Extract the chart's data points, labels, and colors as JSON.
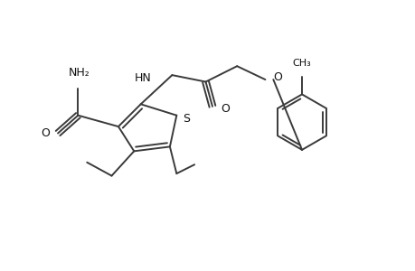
{
  "bg_color": "#ffffff",
  "line_color": "#3a3a3a",
  "line_width": 1.4,
  "figsize": [
    4.6,
    3.0
  ],
  "dpi": 100,
  "xlim": [
    0,
    9.2
  ],
  "ylim": [
    0,
    6.0
  ]
}
